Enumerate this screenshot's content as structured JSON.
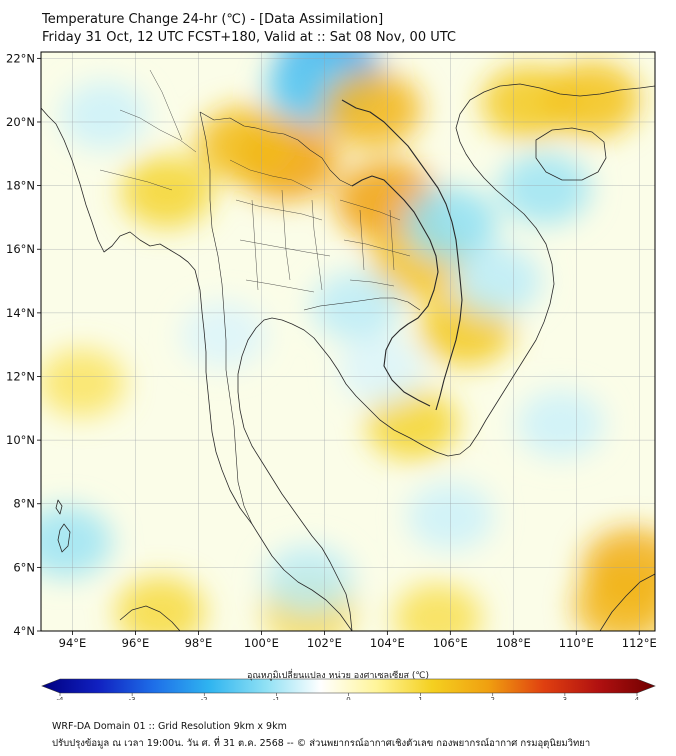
{
  "title": "Temperature Change 24-hr (℃) - [Data Assimilation]",
  "subtitle": "Friday 31 Oct, 12 UTC FCST+180, Valid at :: Sat 08 Nov, 00 UTC",
  "map": {
    "lon_range": [
      93,
      112.5
    ],
    "lat_range": [
      4,
      22.2
    ],
    "lon_ticks": [
      {
        "value": 94,
        "label": "94°E"
      },
      {
        "value": 96,
        "label": "96°E"
      },
      {
        "value": 98,
        "label": "98°E"
      },
      {
        "value": 100,
        "label": "100°E"
      },
      {
        "value": 102,
        "label": "102°E"
      },
      {
        "value": 104,
        "label": "104°E"
      },
      {
        "value": 106,
        "label": "106°E"
      },
      {
        "value": 108,
        "label": "108°E"
      },
      {
        "value": 110,
        "label": "110°E"
      },
      {
        "value": 112,
        "label": "112°E"
      }
    ],
    "lat_ticks": [
      {
        "value": 4,
        "label": "4°N"
      },
      {
        "value": 6,
        "label": "6°N"
      },
      {
        "value": 8,
        "label": "8°N"
      },
      {
        "value": 10,
        "label": "10°N"
      },
      {
        "value": 12,
        "label": "12°N"
      },
      {
        "value": 14,
        "label": "14°N"
      },
      {
        "value": 16,
        "label": "16°N"
      },
      {
        "value": 18,
        "label": "18°N"
      },
      {
        "value": 20,
        "label": "20°N"
      },
      {
        "value": 22,
        "label": "22°N"
      }
    ],
    "grid": true
  },
  "colorbar": {
    "label": "อุณหภูมิเปลี่ยนแปลง หน่วย องศาเซลเซียส (℃)",
    "min": -4,
    "max": 4,
    "ticks": [
      {
        "value": -4,
        "label": "-4"
      },
      {
        "value": -3,
        "label": "-3"
      },
      {
        "value": -2,
        "label": "-2"
      },
      {
        "value": -1,
        "label": "-1"
      },
      {
        "value": 0,
        "label": "0"
      },
      {
        "value": 1,
        "label": "1"
      },
      {
        "value": 2,
        "label": "2"
      },
      {
        "value": 3,
        "label": "3"
      },
      {
        "value": 4,
        "label": "4"
      }
    ],
    "colors": [
      "#000080",
      "#1020c0",
      "#1e6ee8",
      "#2fb4f0",
      "#8ee0f4",
      "#ffffff",
      "#fff59a",
      "#f4d020",
      "#f0a010",
      "#e04010",
      "#b01010",
      "#700000"
    ]
  },
  "field_blobs": [
    {
      "lon": 102.1,
      "lat": 21.6,
      "value": -2.0
    },
    {
      "lon": 101.7,
      "lat": 21.0,
      "value": -1.4
    },
    {
      "lon": 100.8,
      "lat": 18.8,
      "value": 1.8
    },
    {
      "lon": 99.5,
      "lat": 19.3,
      "value": 1.4
    },
    {
      "lon": 103.5,
      "lat": 20.4,
      "value": 1.5
    },
    {
      "lon": 104.0,
      "lat": 17.5,
      "value": 1.8
    },
    {
      "lon": 105.0,
      "lat": 15.6,
      "value": 1.3
    },
    {
      "lon": 106.5,
      "lat": 13.5,
      "value": 1.2
    },
    {
      "lon": 108.5,
      "lat": 20.6,
      "value": 1.2
    },
    {
      "lon": 110.5,
      "lat": 20.7,
      "value": 1.3
    },
    {
      "lon": 104.8,
      "lat": 10.5,
      "value": 1.0
    },
    {
      "lon": 111.8,
      "lat": 6.0,
      "value": 1.6
    },
    {
      "lon": 111.5,
      "lat": 4.8,
      "value": 1.5
    },
    {
      "lon": 97.0,
      "lat": 17.8,
      "value": 1.0
    },
    {
      "lon": 94.3,
      "lat": 11.8,
      "value": 0.7
    },
    {
      "lon": 101.5,
      "lat": 4.7,
      "value": 1.0
    },
    {
      "lon": 96.8,
      "lat": 4.6,
      "value": 0.9
    },
    {
      "lon": 105.6,
      "lat": 4.4,
      "value": 0.8
    },
    {
      "lon": 109.0,
      "lat": 17.9,
      "value": -1.0
    },
    {
      "lon": 106.0,
      "lat": 16.8,
      "value": -1.1
    },
    {
      "lon": 103.0,
      "lat": 14.2,
      "value": -0.8
    },
    {
      "lon": 95.0,
      "lat": 20.2,
      "value": -0.7
    },
    {
      "lon": 93.8,
      "lat": 6.8,
      "value": -1.0
    },
    {
      "lon": 101.5,
      "lat": 5.6,
      "value": -0.8
    },
    {
      "lon": 107.5,
      "lat": 15.0,
      "value": -0.8
    },
    {
      "lon": 109.5,
      "lat": 10.5,
      "value": -0.7
    },
    {
      "lon": 98.8,
      "lat": 13.3,
      "value": -0.6
    },
    {
      "lon": 106.0,
      "lat": 7.6,
      "value": -0.7
    },
    {
      "lon": 103.8,
      "lat": 12.2,
      "value": -0.6
    }
  ],
  "footer": {
    "line1": "WRF-DA Domain 01 :: Grid Resolution 9km x 9km",
    "line2": "ปรับปรุงข้อมูล ณ เวลา 19:00น. วัน ศ. ที่ 31 ต.ค. 2568 -- © ส่วนพยากรณ์อากาศเชิงตัวเลข กองพยากรณ์อากาศ กรมอุตุนิยมวิทยา"
  }
}
